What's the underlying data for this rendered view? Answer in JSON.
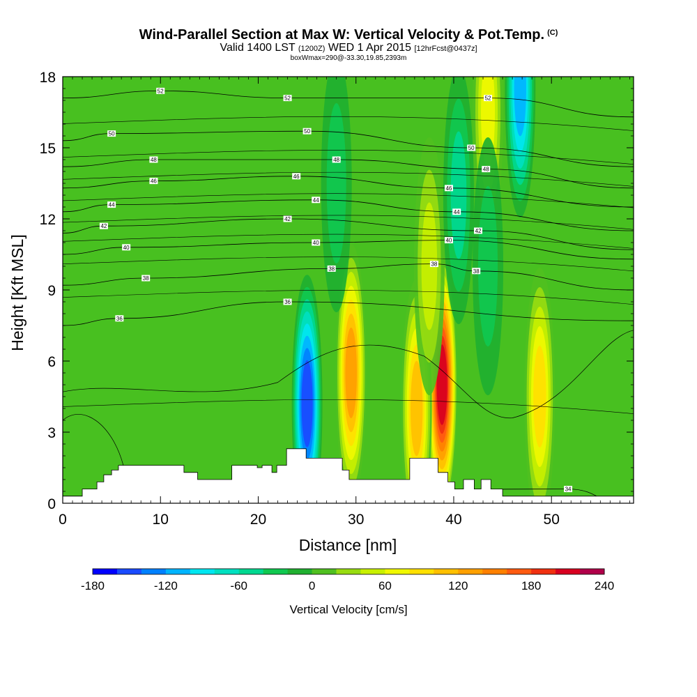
{
  "title": {
    "main": "Wind-Parallel Section at Max W: Vertical Velocity & Pot.Temp.",
    "unit": "(C)",
    "valid_prefix": "Valid 1400 LST",
    "valid_utc": "(1200Z)",
    "valid_date": "WED 1 Apr 2015",
    "forecast": "[12hrFcst@0437z]",
    "box_info": "boxWmax=290@-33.30,19.85,2393m"
  },
  "chart_data": {
    "type": "heatmap",
    "xlabel": "Distance [nm]",
    "ylabel": "Height [Kft MSL]",
    "xlim": [
      0,
      58.4
    ],
    "ylim": [
      0,
      18
    ],
    "x_ticks": [
      0,
      10,
      20,
      30,
      40,
      50
    ],
    "y_ticks": [
      0,
      3,
      6,
      9,
      12,
      15,
      18
    ],
    "colorbar": {
      "title": "Vertical Velocity [cm/s]",
      "min": -180,
      "max": 240,
      "step": 20,
      "tick_values": [
        -180,
        -120,
        -60,
        0,
        60,
        120,
        180,
        240
      ],
      "tick_labels": [
        "-180",
        "-120",
        "-60",
        "0",
        "60",
        "120",
        "180",
        "240"
      ],
      "colors": [
        "#0000ff",
        "#1a4bff",
        "#0080ff",
        "#00b4ff",
        "#00e6f0",
        "#00e0c0",
        "#00d890",
        "#10c850",
        "#20b030",
        "#50c020",
        "#98dc10",
        "#c8f000",
        "#f0f800",
        "#ffe000",
        "#ffc000",
        "#ffa000",
        "#ff8000",
        "#ff5a10",
        "#f03010",
        "#d80020",
        "#b0004a"
      ]
    },
    "updraft_cores": [
      {
        "x": 29.5,
        "z": 5.5,
        "w": 150
      },
      {
        "x": 38.8,
        "z": 5.0,
        "w": 230
      },
      {
        "x": 36.2,
        "z": 4.0,
        "w": 130
      },
      {
        "x": 48.8,
        "z": 4.5,
        "w": 110
      },
      {
        "x": 43.5,
        "z": 16.5,
        "w": 90
      },
      {
        "x": 37.5,
        "z": 10.0,
        "w": 60
      }
    ],
    "downdraft_cores": [
      {
        "x": 25.0,
        "z": 4.2,
        "w": -170
      },
      {
        "x": 46.8,
        "z": 17.5,
        "w": -120
      },
      {
        "x": 28.0,
        "z": 13.5,
        "w": -50
      },
      {
        "x": 40.5,
        "z": 13.0,
        "w": -60
      },
      {
        "x": 43.5,
        "z": 10.0,
        "w": -40
      }
    ],
    "isentropes": [
      {
        "level": "34",
        "label_x": 51.7,
        "label_z": 0.6
      },
      {
        "level": "36",
        "label_x": 5.8,
        "label_z": 7.8
      },
      {
        "level": "36",
        "label_x": 23.0,
        "label_z": 8.5
      },
      {
        "level": "38",
        "label_x": 8.5,
        "label_z": 9.5
      },
      {
        "level": "38",
        "label_x": 27.5,
        "label_z": 9.9
      },
      {
        "level": "38",
        "label_x": 38.0,
        "label_z": 10.1
      },
      {
        "level": "38",
        "label_x": 42.3,
        "label_z": 9.8
      },
      {
        "level": "40",
        "label_x": 6.5,
        "label_z": 10.8
      },
      {
        "level": "40",
        "label_x": 25.9,
        "label_z": 11.0
      },
      {
        "level": "40",
        "label_x": 39.5,
        "label_z": 11.1
      },
      {
        "level": "42",
        "label_x": 4.2,
        "label_z": 11.7
      },
      {
        "level": "42",
        "label_x": 23.0,
        "label_z": 12.0
      },
      {
        "level": "42",
        "label_x": 42.5,
        "label_z": 11.5
      },
      {
        "level": "44",
        "label_x": 5.0,
        "label_z": 12.6
      },
      {
        "level": "44",
        "label_x": 25.9,
        "label_z": 12.8
      },
      {
        "level": "44",
        "label_x": 40.3,
        "label_z": 12.3
      },
      {
        "level": "46",
        "label_x": 9.3,
        "label_z": 13.6
      },
      {
        "level": "46",
        "label_x": 23.9,
        "label_z": 13.8
      },
      {
        "level": "46",
        "label_x": 39.5,
        "label_z": 13.3
      },
      {
        "level": "48",
        "label_x": 9.3,
        "label_z": 14.5
      },
      {
        "level": "48",
        "label_x": 28.0,
        "label_z": 14.5
      },
      {
        "level": "48",
        "label_x": 43.3,
        "label_z": 14.1
      },
      {
        "level": "50",
        "label_x": 5.0,
        "label_z": 15.6
      },
      {
        "level": "50",
        "label_x": 25.0,
        "label_z": 15.7
      },
      {
        "level": "50",
        "label_x": 41.8,
        "label_z": 15.0
      },
      {
        "level": "52",
        "label_x": 10.0,
        "label_z": 17.4
      },
      {
        "level": "52",
        "label_x": 23.0,
        "label_z": 17.1
      },
      {
        "level": "52",
        "label_x": 43.5,
        "label_z": 17.1
      }
    ],
    "terrain_profile": {
      "x": [
        0,
        2,
        2,
        3.5,
        3.5,
        4.2,
        4.2,
        5,
        5,
        5.7,
        5.7,
        12.4,
        12.4,
        13.8,
        13.8,
        17.3,
        17.3,
        19.9,
        19.9,
        20.4,
        20.4,
        21.4,
        21.4,
        21.9,
        21.9,
        22.9,
        22.9,
        24.9,
        24.9,
        26.1,
        26.1,
        28.6,
        28.6,
        29.3,
        29.3,
        35.5,
        35.5,
        38.4,
        38.4,
        39.4,
        39.4,
        40.1,
        40.1,
        41,
        41,
        42.1,
        42.1,
        42.8,
        42.8,
        43.8,
        43.8,
        45,
        45,
        47.5,
        47.5,
        55.7,
        55.7,
        58.4
      ],
      "z": [
        0.3,
        0.3,
        0.6,
        0.6,
        0.9,
        0.9,
        1.2,
        1.2,
        1.4,
        1.4,
        1.6,
        1.6,
        1.3,
        1.3,
        1.0,
        1.0,
        1.6,
        1.6,
        1.5,
        1.5,
        1.6,
        1.6,
        1.3,
        1.3,
        1.6,
        1.6,
        2.3,
        2.3,
        1.9,
        1.9,
        1.9,
        1.9,
        1.4,
        1.4,
        1.0,
        1.0,
        1.9,
        1.9,
        1.3,
        1.3,
        0.9,
        0.9,
        0.6,
        0.6,
        1.0,
        1.0,
        0.6,
        0.6,
        1.0,
        1.0,
        0.6,
        0.6,
        0.3,
        0.3,
        0.3,
        0.3,
        0.3,
        0.3
      ]
    }
  }
}
